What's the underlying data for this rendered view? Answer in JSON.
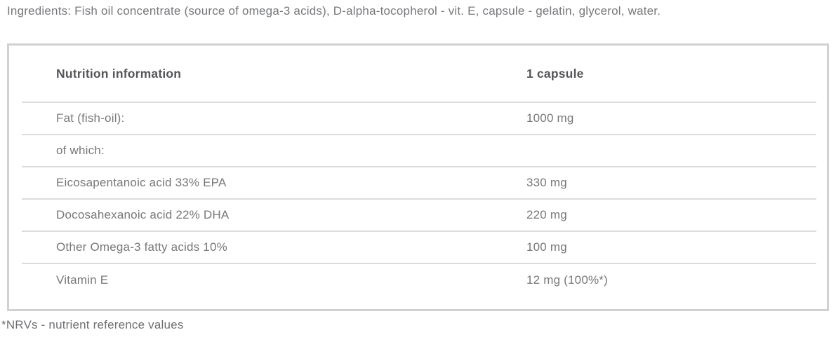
{
  "ingredients_line": "Ingredients: Fish oil concentrate (source of omega-3 acids), D-alpha-tocopherol - vit. E, capsule - gelatin, glycerol, water.",
  "table": {
    "header": {
      "col1": "Nutrition information",
      "col2": "1 capsule"
    },
    "rows": [
      {
        "label": "Fat (fish-oil):",
        "value": "1000 mg"
      },
      {
        "label": "of which:",
        "value": ""
      },
      {
        "label": "Eicosapentanoic acid 33% EPA",
        "value": "330 mg"
      },
      {
        "label": "Docosahexanoic acid 22% DHA",
        "value": "220 mg"
      },
      {
        "label": "Other Omega-3 fatty acids 10%",
        "value": "100 mg"
      },
      {
        "label": "Vitamin E",
        "value": "12 mg (100%*)"
      }
    ]
  },
  "footnote": "*NRVs - nutrient reference values",
  "colors": {
    "body_text": "#77787b",
    "header_text": "#55565a",
    "table_border": "#d1d1d1",
    "row_divider": "#dcdcdc",
    "background": "#ffffff"
  }
}
